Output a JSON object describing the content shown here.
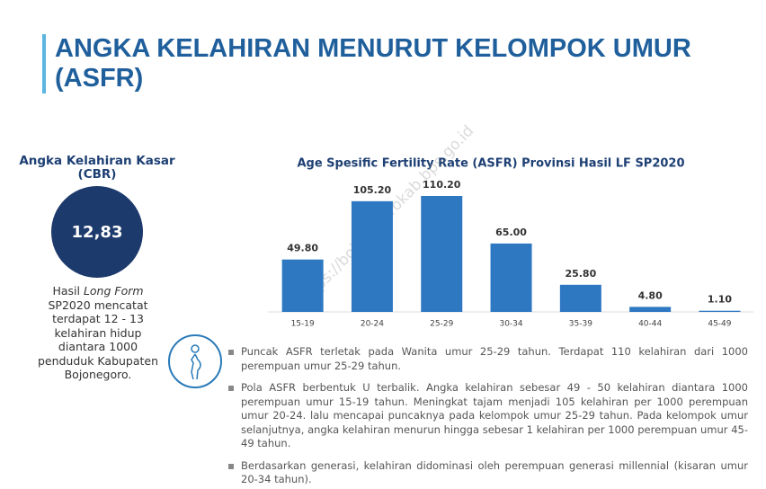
{
  "header": {
    "title": "ANGKA KELAHIRAN MENURUT KELOMPOK UMUR (ASFR)"
  },
  "cbr": {
    "title": "Angka Kelahiran  Kasar (CBR)",
    "value": "12,83",
    "note": [
      "Hasil ",
      "Long Form",
      " SP2020 mencatat terdapat 12 - 13 kelahiran hidup diantara 1000 penduduk Kabupaten Bojonegoro."
    ]
  },
  "watermark": "https://bojonegorokab.bps.go.id",
  "chart_data": {
    "type": "bar",
    "title": "Age Spesific Fertility Rate (ASFR) Provinsi Hasil LF SP2020",
    "categories": [
      "15-19",
      "20-24",
      "25-29",
      "30-34",
      "35-39",
      "40-44",
      "45-49"
    ],
    "values": [
      49.8,
      105.2,
      110.2,
      65,
      25.8,
      4.8,
      1.1
    ],
    "value_labels": [
      "49.80",
      "105.20",
      "110.20",
      "65.00",
      "25.80",
      "4.80",
      "1.10"
    ],
    "color": "#2e78c2"
  },
  "notes": [
    "Puncak ASFR terletak pada Wanita umur 25-29 tahun. Terdapat 110 kelahiran dari 1000 perempuan umur 25-29 tahun.",
    "Pola ASFR berbentuk U terbalik. Angka kelahiran sebesar 49 - 50 kelahiran diantara 1000 perempuan umur 15-19 tahun. Meningkat tajam menjadi 105 kelahiran per 1000 perempuan umur 20-24. lalu mencapai puncaknya pada kelompok umur 25-29 tahun. Pada kelompok umur selanjutnya, angka kelahiran menurun hingga sebesar 1 kelahiran per 1000 perempuan umur 45-49 tahun.",
    "Berdasarkan generasi, kelahiran didominasi oleh perempuan generasi millennial (kisaran umur 20-34 tahun)."
  ]
}
